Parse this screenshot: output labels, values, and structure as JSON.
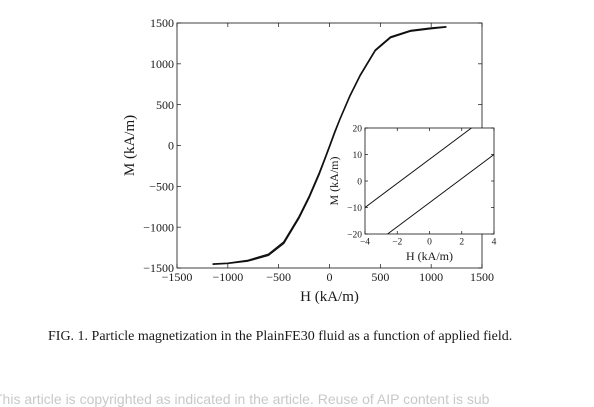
{
  "chart_data": [
    {
      "type": "line",
      "xlabel": "H (kA/m)",
      "ylabel": "M (kA/m)",
      "xlim": [
        -1500,
        1500
      ],
      "ylim": [
        -1500,
        1500
      ],
      "xticks": [
        -1500,
        -1000,
        -500,
        0,
        500,
        1000,
        1500
      ],
      "yticks": [
        -1500,
        -1000,
        -500,
        0,
        500,
        1000,
        1500
      ],
      "xtick_labels": [
        "−1500",
        "−1000",
        "−500",
        "0",
        "500",
        "1000",
        "1500"
      ],
      "ytick_labels": [
        "−1500",
        "−1000",
        "−500",
        "0",
        "500",
        "1000",
        "1500"
      ],
      "grid": false,
      "series": [
        {
          "x": [
            -1150,
            -1000,
            -800,
            -600,
            -450,
            -300,
            -200,
            -100,
            -50,
            0,
            50,
            100,
            200,
            300,
            450,
            600,
            800,
            1000,
            1150
          ],
          "y": [
            -1450,
            -1440,
            -1405,
            -1330,
            -1180,
            -870,
            -620,
            -330,
            -170,
            -5,
            165,
            320,
            610,
            860,
            1170,
            1330,
            1410,
            1440,
            1455
          ]
        },
        {
          "x": [
            -1150,
            -1000,
            -800,
            -600,
            -450,
            -300,
            -200,
            -100,
            -50,
            0,
            50,
            100,
            200,
            300,
            450,
            600,
            800,
            1000,
            1150
          ],
          "y": [
            -1455,
            -1445,
            -1415,
            -1345,
            -1200,
            -890,
            -640,
            -350,
            -185,
            -20,
            150,
            310,
            600,
            850,
            1160,
            1320,
            1400,
            1430,
            1450
          ]
        }
      ]
    },
    {
      "type": "line",
      "xlabel": "H (kA/m)",
      "ylabel": "M (kA/m)",
      "xlim": [
        -4,
        4
      ],
      "ylim": [
        -20,
        20
      ],
      "xticks": [
        -4,
        -2,
        0,
        2,
        4
      ],
      "yticks": [
        -20,
        -10,
        0,
        10,
        20
      ],
      "xtick_labels": [
        "−4",
        "−2",
        "0",
        "2",
        "4"
      ],
      "ytick_labels": [
        "−20",
        "−10",
        "0",
        "10",
        "20"
      ],
      "grid": false,
      "series": [
        {
          "x": [
            -4,
            2.6
          ],
          "y": [
            -10,
            20
          ]
        },
        {
          "x": [
            -2.6,
            4
          ],
          "y": [
            -20,
            10
          ]
        }
      ]
    }
  ],
  "caption": "FIG. 1. Particle magnetization in the PlainFE30 fluid as a function of applied field.",
  "footer": "This article is copyrighted as indicated in the article. Reuse of AIP content is sub"
}
